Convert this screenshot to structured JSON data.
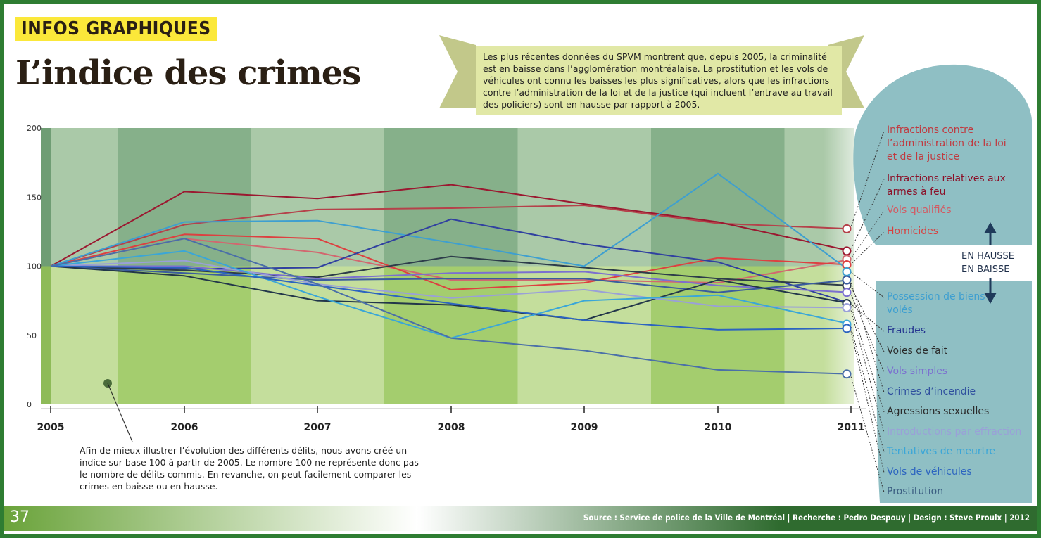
{
  "header": {
    "kicker": "INFOS GRAPHIQUES",
    "title": "L’indice des crimes"
  },
  "intro": "Les plus récentes données du SPVM montrent que, depuis 2005, la criminalité est en baisse dans l’agglomération montréalaise. La prostitution et les vols de véhicules ont connu les baisses les plus significatives, alors que les infractions contre l’administration de la loi et de la justice (qui incluent l’entrave au travail des policiers) sont en hausse par rapport à 2005.",
  "note": "Afin de mieux illustrer l’évolution des différents délits, nous avons créé un indice sur base 100 à partir de 2005. Le nombre 100 ne représente donc pas le nombre de délits commis. En revanche, on peut facilement comparer les crimes en baisse ou en hausse.",
  "labels": {
    "up": "EN HAUSSE",
    "down": "EN BAISSE"
  },
  "footer": {
    "page": "37",
    "source": "Source : Service de police de la Ville de Montréal | Recherche : Pedro Despouy | Design : Steve Proulx | 2012"
  },
  "colors": {
    "frame": "#2e7d32",
    "bg_up": "#8fb48f",
    "bg_down": "#a9cf74",
    "blob": "#8fbfc4"
  },
  "chart_data": {
    "type": "line",
    "title": "L’indice des crimes",
    "x": [
      "2005",
      "2006",
      "2007",
      "2008",
      "2009",
      "2010",
      "2011"
    ],
    "yticks": [
      "0",
      "50",
      "100",
      "150",
      "200"
    ],
    "ylim": [
      0,
      200
    ],
    "baseline": 100,
    "series": [
      {
        "name": "Infractions contre l’administration de la loi et de la justice",
        "color": "#b5414a",
        "values": [
          100,
          130,
          141,
          142,
          144,
          131,
          127
        ]
      },
      {
        "name": "Infractions relatives aux armes à feu",
        "color": "#9b1830",
        "values": [
          100,
          154,
          149,
          159,
          145,
          132,
          111
        ]
      },
      {
        "name": "Vols qualifiés",
        "color": "#d2676f",
        "values": [
          100,
          120,
          110,
          90,
          90,
          88,
          105
        ]
      },
      {
        "name": "Homicides",
        "color": "#dd4040",
        "values": [
          100,
          123,
          120,
          83,
          88,
          106,
          101
        ]
      },
      {
        "name": "Possession de biens volés",
        "color": "#3e9fd0",
        "values": [
          100,
          132,
          133,
          117,
          100,
          167,
          96
        ]
      },
      {
        "name": "Fraudes",
        "color": "#3040a0",
        "values": [
          100,
          98,
          99,
          134,
          116,
          103,
          73
        ]
      },
      {
        "name": "Voies de fait",
        "color": "#2d3c4a",
        "values": [
          100,
          97,
          92,
          107,
          99,
          91,
          86
        ]
      },
      {
        "name": "Vols simples",
        "color": "#7b6fd0",
        "values": [
          100,
          100,
          91,
          95,
          96,
          86,
          81
        ]
      },
      {
        "name": "Crimes d’incendie",
        "color": "#3a5c9e",
        "values": [
          100,
          95,
          90,
          91,
          91,
          81,
          90
        ]
      },
      {
        "name": "Agressions sexuelles",
        "color": "#22364a",
        "values": [
          100,
          93,
          75,
          72,
          61,
          90,
          73
        ]
      },
      {
        "name": "Introductions par effraction",
        "color": "#9aa0d8",
        "values": [
          100,
          104,
          87,
          77,
          83,
          71,
          70
        ]
      },
      {
        "name": "Tentatives de meurtre",
        "color": "#3aa6d8",
        "values": [
          100,
          111,
          78,
          48,
          75,
          79,
          58
        ]
      },
      {
        "name": "Vols de véhicules",
        "color": "#2c64c0",
        "values": [
          100,
          99,
          86,
          73,
          61,
          54,
          55
        ]
      },
      {
        "name": "Prostitution",
        "color": "#4a6fa8",
        "values": [
          100,
          120,
          87,
          48,
          39,
          25,
          22
        ]
      }
    ]
  }
}
